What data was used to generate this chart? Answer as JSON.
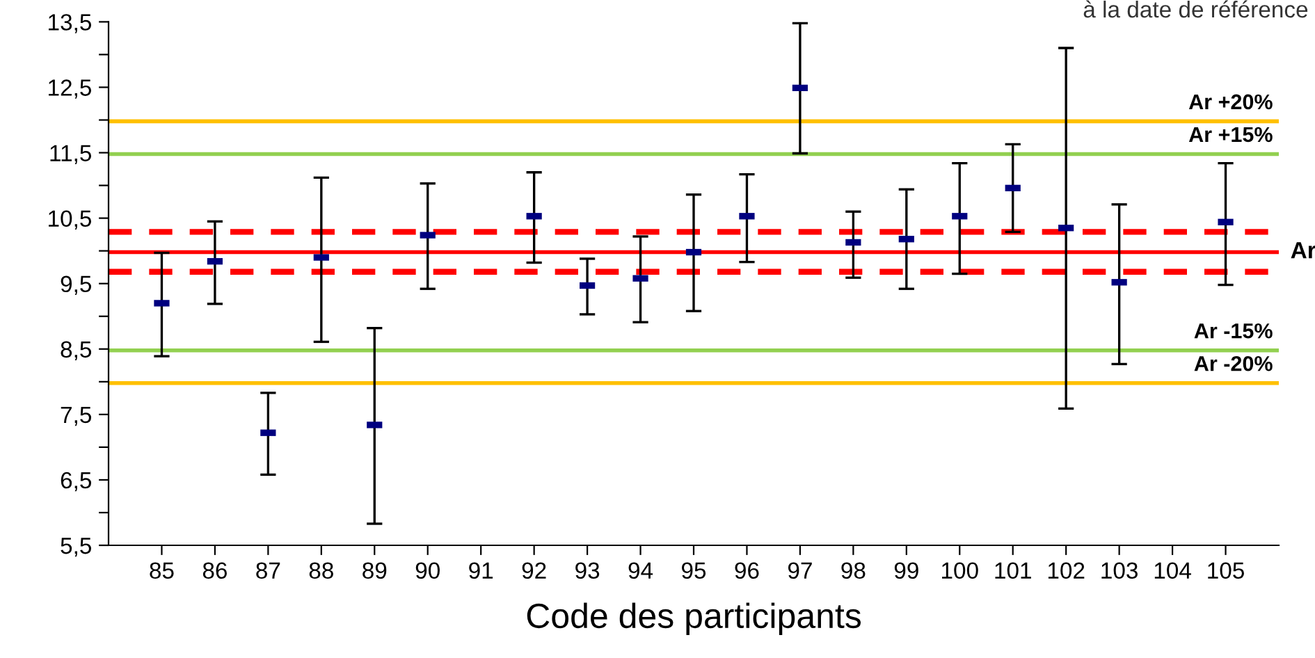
{
  "chart_data": {
    "type": "scatter",
    "xlabel": "Code des participants",
    "categories": [
      "85",
      "86",
      "87",
      "88",
      "89",
      "90",
      "91",
      "92",
      "93",
      "94",
      "95",
      "96",
      "97",
      "98",
      "99",
      "100",
      "101",
      "102",
      "103",
      "104",
      "105"
    ],
    "series": [
      {
        "color": "#00007f",
        "values": [
          9.2,
          9.84,
          7.22,
          9.9,
          7.34,
          10.24,
          null,
          10.53,
          9.47,
          9.58,
          9.98,
          10.53,
          12.49,
          10.13,
          10.18,
          10.53,
          10.96,
          10.35,
          9.52,
          null,
          10.44
        ],
        "errors": [
          [
            8.39,
            9.97
          ],
          [
            9.19,
            10.45
          ],
          [
            6.58,
            7.83
          ],
          [
            8.61,
            11.12
          ],
          [
            5.83,
            8.82
          ],
          [
            9.42,
            11.03
          ],
          null,
          [
            9.82,
            11.2
          ],
          [
            9.03,
            9.88
          ],
          [
            8.91,
            10.22
          ],
          [
            9.08,
            10.86
          ],
          [
            9.83,
            11.17
          ],
          [
            11.49,
            13.48
          ],
          [
            9.59,
            10.6
          ],
          [
            9.42,
            10.94
          ],
          [
            9.65,
            11.34
          ],
          [
            10.29,
            11.63
          ],
          [
            7.59,
            13.1
          ],
          [
            8.27,
            10.71
          ],
          null,
          [
            9.48,
            11.34
          ]
        ]
      }
    ],
    "ylim": [
      5.5,
      13.5
    ],
    "yticks": [
      {
        "value": 5.5,
        "label": "5,5"
      },
      {
        "value": 6,
        "label": null
      },
      {
        "value": 6.5,
        "label": "6,5"
      },
      {
        "value": 7,
        "label": null
      },
      {
        "value": 7.5,
        "label": "7,5"
      },
      {
        "value": 8,
        "label": null
      },
      {
        "value": 8.5,
        "label": "8,5"
      },
      {
        "value": 9,
        "label": null
      },
      {
        "value": 9.5,
        "label": "9,5"
      },
      {
        "value": 10,
        "label": null
      },
      {
        "value": 10.5,
        "label": "10,5"
      },
      {
        "value": 11,
        "label": null
      },
      {
        "value": 11.5,
        "label": "11,5"
      },
      {
        "value": 12,
        "label": null
      },
      {
        "value": 12.5,
        "label": "12,5"
      },
      {
        "value": 13,
        "label": null
      },
      {
        "value": 13.5,
        "label": "13,5"
      }
    ],
    "ref_lines": [
      {
        "axis": "y",
        "value": 11.98,
        "label": "Ar +20%",
        "color": "#ffc000"
      },
      {
        "axis": "y",
        "value": 11.48,
        "label": "Ar +15%",
        "color": "#92d050"
      },
      {
        "axis": "y",
        "value": 10.29,
        "label": null,
        "color": "#ff0000",
        "line_style": "dashed"
      },
      {
        "axis": "y",
        "value": 9.98,
        "label": "Ar",
        "color": "#ff0000"
      },
      {
        "axis": "y",
        "value": 9.68,
        "label": null,
        "color": "#ff0000",
        "line_style": "dashed"
      },
      {
        "axis": "y",
        "value": 8.48,
        "label": "Ar -15%",
        "color": "#92d050"
      },
      {
        "axis": "y",
        "value": 7.98,
        "label": "Ar -20%",
        "color": "#ffc000"
      }
    ],
    "annotations": [
      "à la date de référence"
    ],
    "grid": false,
    "legend": false
  }
}
